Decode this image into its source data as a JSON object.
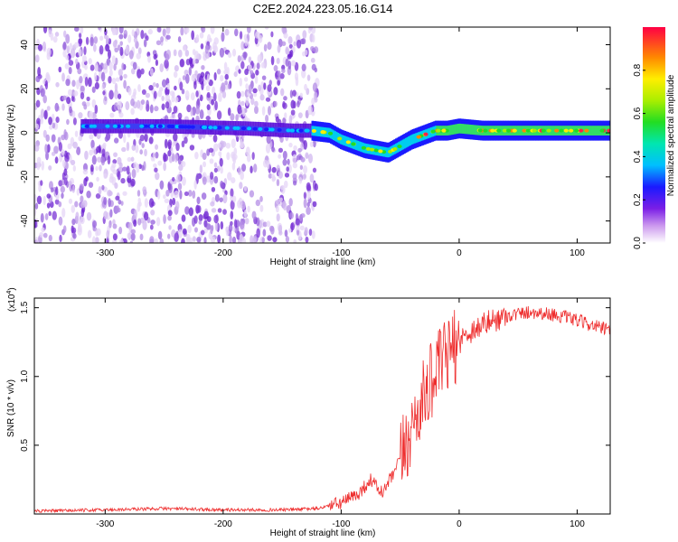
{
  "title": "C2E2.2024.223.05.16.G14",
  "chart_data": [
    {
      "type": "heatmap",
      "xlabel": "Height of straight line (km)",
      "ylabel": "Frequency (Hz)",
      "xlim": [
        -360,
        128
      ],
      "ylim": [
        -50,
        48
      ],
      "x_ticks": [
        "-300",
        "-200",
        "-100",
        "0",
        "100"
      ],
      "x_tick_values": [
        -300,
        -200,
        -100,
        0,
        100
      ],
      "y_ticks": [
        "-40",
        "-20",
        "0",
        "20",
        "40"
      ],
      "y_tick_values": [
        -40,
        -20,
        0,
        20,
        40
      ],
      "colorbar": {
        "label": "Normalized spectral amplitude",
        "range": [
          0,
          1
        ],
        "ticks": [
          "0.0",
          "0.2",
          "0.4",
          "0.6",
          "0.8"
        ],
        "tick_values": [
          0,
          0.2,
          0.4,
          0.6,
          0.8
        ]
      },
      "ridge": {
        "x": [
          -320,
          -250,
          -180,
          -140,
          -125,
          -110,
          -100,
          -90,
          -80,
          -70,
          -60,
          -50,
          -40,
          -30,
          -20,
          -10,
          0,
          20,
          50,
          80,
          100,
          128
        ],
        "y": [
          3,
          3,
          2,
          1,
          1,
          0,
          -3,
          -5,
          -7,
          -8,
          -9,
          -6,
          -3,
          -1,
          1,
          1,
          2,
          1,
          1,
          1,
          1,
          1
        ]
      },
      "noise_x_range": [
        -360,
        -120
      ]
    },
    {
      "type": "line",
      "xlabel": "Height of straight line (km)",
      "ylabel": "SNR (10 * v/v)",
      "scale_label": "(x10",
      "scale_exp": "4",
      "scale_close": ")",
      "xlim": [
        -360,
        128
      ],
      "ylim": [
        0,
        1.57
      ],
      "x_ticks": [
        "-300",
        "-200",
        "-100",
        "0",
        "100"
      ],
      "x_tick_values": [
        -300,
        -200,
        -100,
        0,
        100
      ],
      "y_ticks": [
        "0.5",
        "1.0",
        "1.5"
      ],
      "y_tick_values": [
        0.5,
        1.0,
        1.5
      ],
      "color": "#ee2c2c",
      "series": [
        {
          "x": [
            -360,
            -300,
            -250,
            -200,
            -150,
            -120,
            -100,
            -85,
            -75,
            -65,
            -55,
            -45,
            -35,
            -25,
            -15,
            -5,
            5,
            20,
            40,
            60,
            80,
            95,
            110,
            128
          ],
          "y": [
            0.02,
            0.03,
            0.04,
            0.03,
            0.03,
            0.04,
            0.08,
            0.15,
            0.25,
            0.15,
            0.3,
            0.5,
            0.75,
            0.95,
            1.1,
            1.2,
            1.3,
            1.38,
            1.44,
            1.47,
            1.45,
            1.42,
            1.38,
            1.33
          ]
        }
      ]
    }
  ]
}
